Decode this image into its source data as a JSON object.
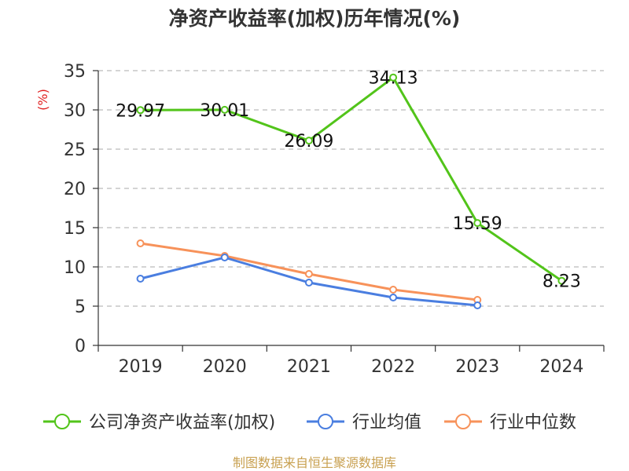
{
  "title": "净资产收益率(加权)历年情况(%)",
  "source": "制图数据来自恒生聚源数据库",
  "chart_data": {
    "type": "line",
    "title": "净资产收益率(加权)历年情况(%)",
    "ylabel": "(%)",
    "xlabel": "",
    "categories": [
      "2019",
      "2020",
      "2021",
      "2022",
      "2023",
      "2024"
    ],
    "ylim": [
      0,
      35
    ],
    "yticks": [
      0,
      5,
      10,
      15,
      20,
      25,
      30,
      35
    ],
    "grid": true,
    "legend_position": "bottom",
    "series": [
      {
        "name": "公司净资产收益率(加权)",
        "color": "#52c41a",
        "values": [
          29.97,
          30.01,
          26.09,
          34.13,
          15.59,
          8.23
        ],
        "labels": [
          "29.97",
          "30.01",
          "26.09",
          "34.13",
          "15.59",
          "8.23"
        ]
      },
      {
        "name": "行业均值",
        "color": "#4a7ee0",
        "values": [
          8.5,
          11.2,
          8.0,
          6.1,
          5.1,
          null
        ]
      },
      {
        "name": "行业中位数",
        "color": "#f7925a",
        "values": [
          13.0,
          11.4,
          9.1,
          7.1,
          5.8,
          null
        ]
      }
    ]
  }
}
